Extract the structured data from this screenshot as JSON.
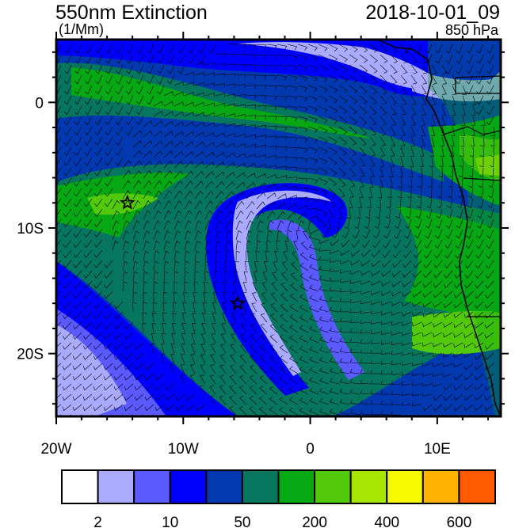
{
  "header": {
    "title": "550nm Extinction",
    "units": "(1/Mm)",
    "datetime": "2018-10-01_09",
    "level": "850 hPa"
  },
  "map": {
    "lon_range": [
      -20,
      15
    ],
    "lat_range": [
      -25,
      5
    ],
    "lon_labels": [
      {
        "lon": -20,
        "text": "20W"
      },
      {
        "lon": -10,
        "text": "10W"
      },
      {
        "lon": 0,
        "text": "0"
      },
      {
        "lon": 10,
        "text": "10E"
      }
    ],
    "lat_labels": [
      {
        "lat": 0,
        "text": "0"
      },
      {
        "lat": -10,
        "text": "10S"
      },
      {
        "lat": -20,
        "text": "20S"
      }
    ],
    "markers": [
      {
        "name": "star",
        "lon": -14.4,
        "lat": -8.0
      },
      {
        "name": "star",
        "lon": -5.7,
        "lat": -16.0
      }
    ],
    "background_color": "#0238b0"
  },
  "colorbar": {
    "colors": [
      "#ffffff",
      "#aaaaff",
      "#5a5aff",
      "#0000ff",
      "#0238b0",
      "#06765f",
      "#06a814",
      "#52c90a",
      "#a6e600",
      "#f5fa00",
      "#ffb300",
      "#ff5a00",
      "#ff1000"
    ],
    "labels": [
      {
        "after_box": 1,
        "text": "2"
      },
      {
        "after_box": 3,
        "text": "10"
      },
      {
        "after_box": 5,
        "text": "50"
      },
      {
        "after_box": 7,
        "text": "200"
      },
      {
        "after_box": 9,
        "text": "400"
      },
      {
        "after_box": 11,
        "text": "600"
      }
    ]
  }
}
